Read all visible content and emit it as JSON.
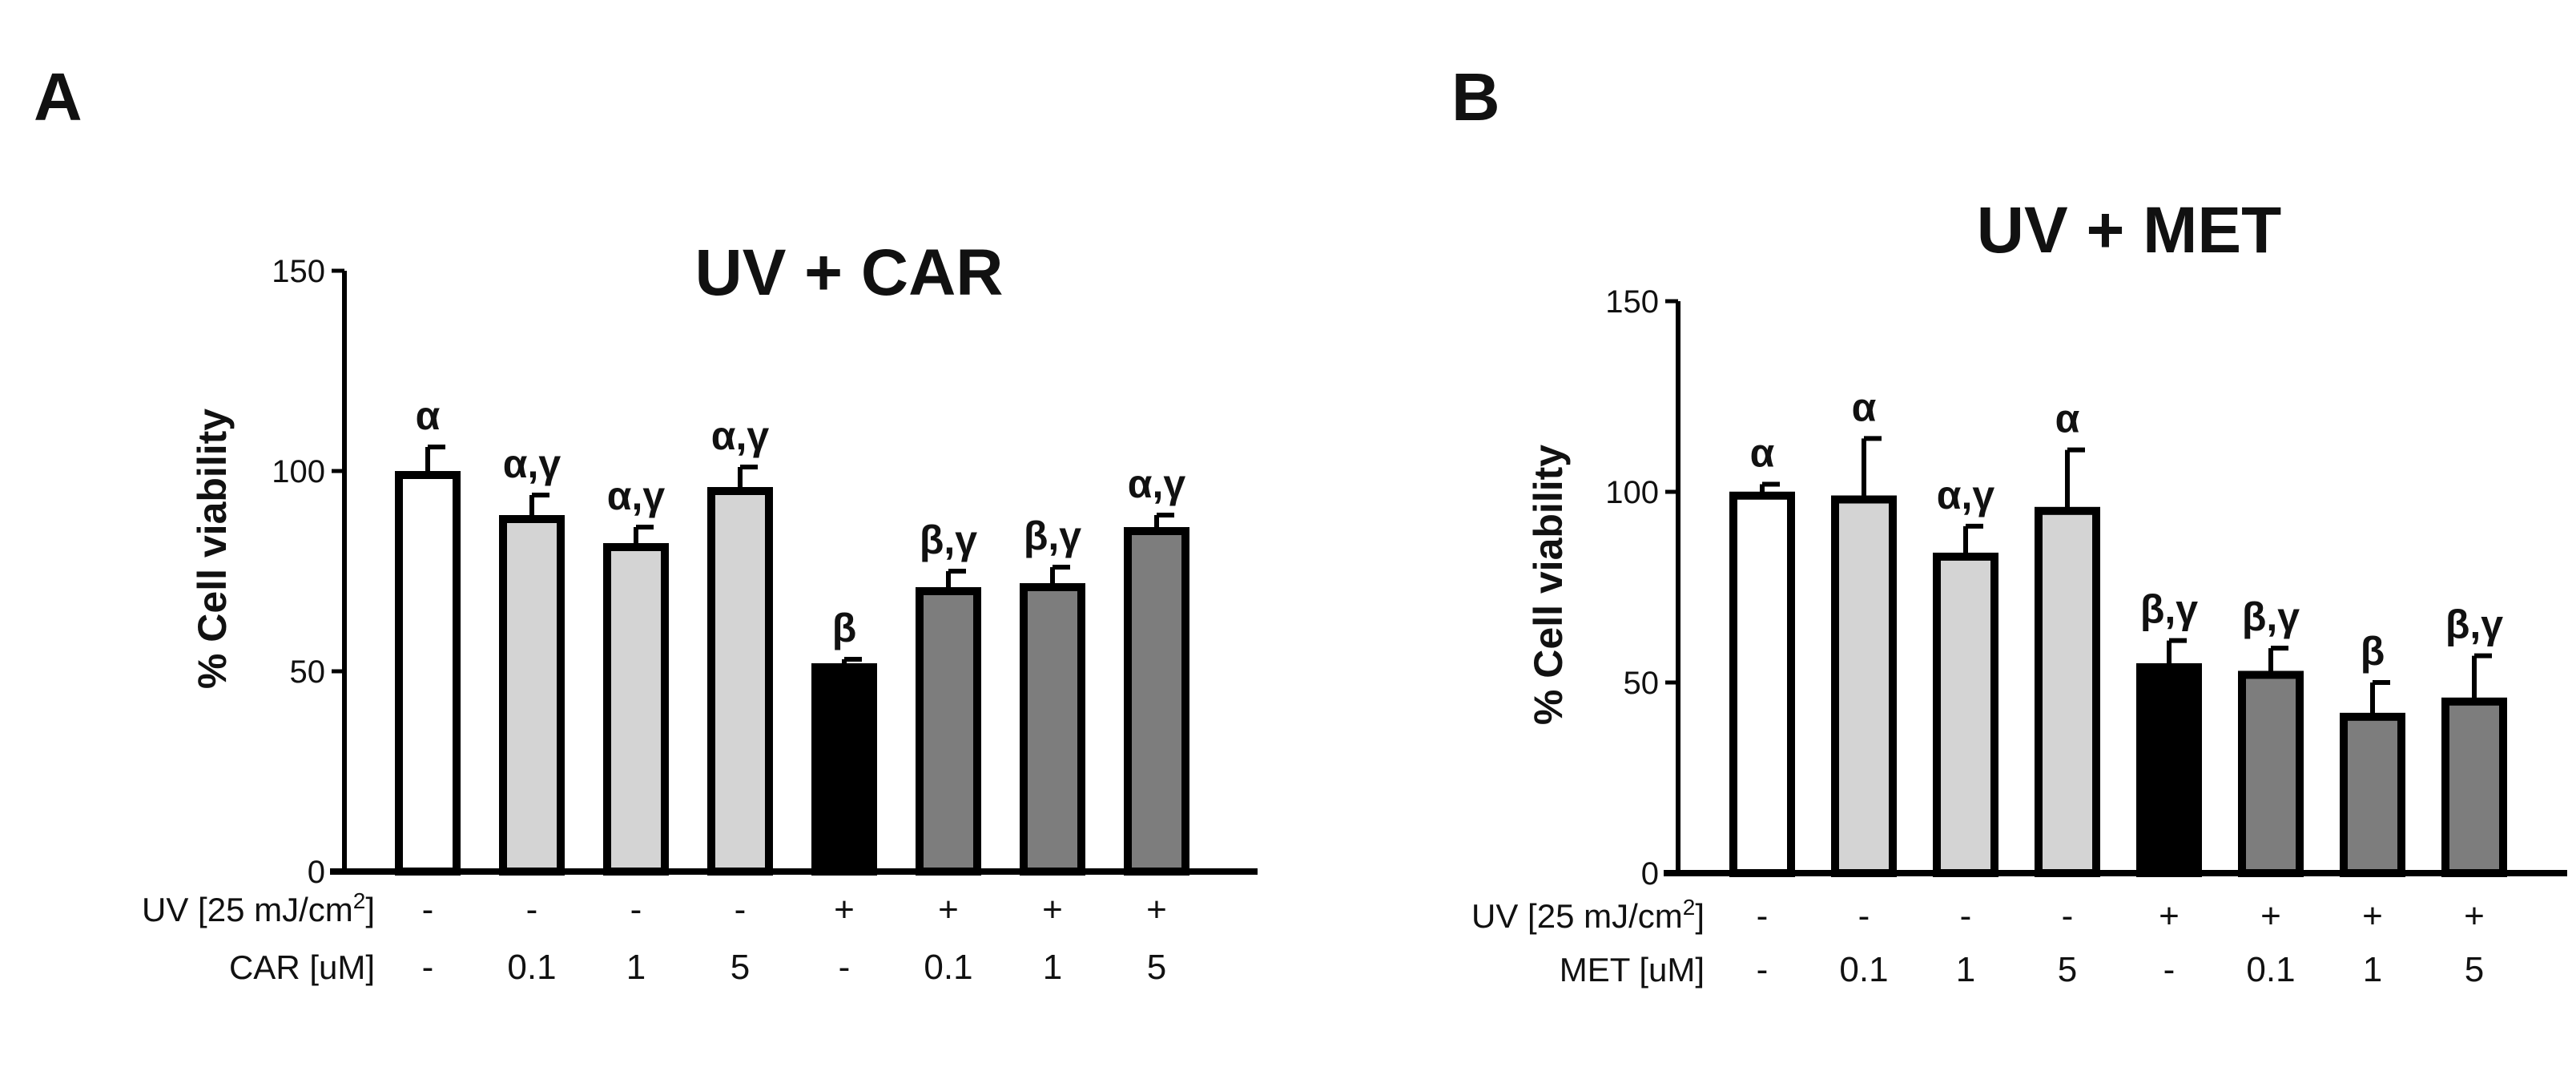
{
  "panels": [
    {
      "letter": "A",
      "rows": [
        {
          "label": "UV [25 mJ/cm",
          "sup": "2",
          "close": "]",
          "values": [
            "-",
            "-",
            "-",
            "-",
            "+",
            "+",
            "+",
            "+"
          ]
        },
        {
          "label": "CAR [uM]",
          "sup": "",
          "close": "",
          "values": [
            "-",
            "0.1",
            "1",
            "5",
            "-",
            "0.1",
            "1",
            "5"
          ]
        }
      ]
    },
    {
      "letter": "B",
      "rows": [
        {
          "label": "UV [25 mJ/cm",
          "sup": "2",
          "close": "]",
          "values": [
            "-",
            "-",
            "-",
            "-",
            "+",
            "+",
            "+",
            "+"
          ]
        },
        {
          "label": "MET [uM]",
          "sup": "",
          "close": "",
          "values": [
            "-",
            "0.1",
            "1",
            "5",
            "-",
            "0.1",
            "1",
            "5"
          ]
        }
      ]
    }
  ],
  "colors": {
    "white": "#ffffff",
    "light": "#d4d4d4",
    "black": "#000000",
    "dark": "#7d7d7d",
    "axis": "#000000"
  },
  "chart_data": [
    {
      "type": "bar",
      "title": "UV + CAR",
      "ylabel": "% Cell viability",
      "xlabel": "",
      "ylim": [
        0,
        150
      ],
      "yticks": [
        0,
        50,
        100,
        150
      ],
      "grid": false,
      "values": [
        99,
        88,
        81,
        95,
        51,
        70,
        71,
        85
      ],
      "errors": [
        7,
        6,
        5,
        6,
        2,
        5,
        5,
        4
      ],
      "significance": [
        "α",
        "α,γ",
        "α,γ",
        "α,γ",
        "β",
        "β,γ",
        "β,γ",
        "α,γ"
      ],
      "bar_colors": [
        "white",
        "light",
        "light",
        "light",
        "black",
        "dark",
        "dark",
        "dark"
      ]
    },
    {
      "type": "bar",
      "title": "UV + MET",
      "ylabel": "% Cell viability",
      "xlabel": "",
      "ylim": [
        0,
        150
      ],
      "yticks": [
        0,
        50,
        100,
        150
      ],
      "grid": false,
      "values": [
        99,
        98,
        83,
        95,
        54,
        52,
        41,
        45
      ],
      "errors": [
        3,
        16,
        8,
        16,
        7,
        7,
        9,
        12
      ],
      "significance": [
        "α",
        "α",
        "α,γ",
        "α",
        "β,γ",
        "β,γ",
        "β",
        "β,γ"
      ],
      "bar_colors": [
        "white",
        "light",
        "light",
        "light",
        "black",
        "dark",
        "dark",
        "dark"
      ]
    }
  ]
}
